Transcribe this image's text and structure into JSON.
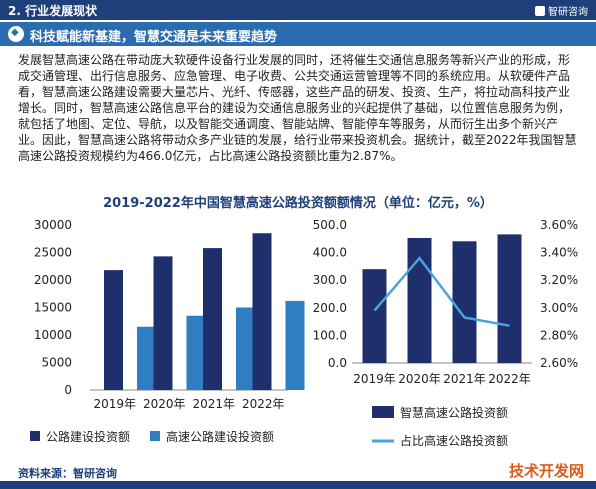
{
  "header": {
    "section_title": "2. 行业发展现状",
    "brand": "智研咨询",
    "banner": "科技赋能新基建，智慧交通是未来重要趋势"
  },
  "paragraph": "发展智慧高速公路在带动庞大软硬件设备行业发展的同时，还将催生交通信息服务等新兴产业的形成，形成交通管理、出行信息服务、应急管理、电子收费、公共交通运营管理等不同的系统应用。从软硬件产品看，智慧高速公路建设需要大量芯片、光纤、传感器，这些产品的研发、投资、生产，将拉动高科技产业增长。同时，智慧高速公路信息平台的建设为交通信息服务业的兴起提供了基础，以位置信息服务为例，就包括了地图、定位、导航，以及智能交通调度、智能站牌、智能停车等服务，从而衍生出多个新兴产业。因此，智慧高速公路将带动众多产业链的发展，给行业带来投资机会。据统计，截至2022年我国智慧高速公路投资规模约为466.0亿元，占比高速公路投资额比重为2.87%。",
  "chart_title": "2019-2022年中国智慧高速公路投资额额情况（单位：亿元，%）",
  "chart_data": [
    {
      "type": "bar",
      "categories": [
        "2019年",
        "2020年",
        "2021年",
        "2022年"
      ],
      "series": [
        {
          "name": "公路建设投资额",
          "values": [
            21800,
            24300,
            25800,
            28500
          ],
          "color": "#1e2f6b"
        },
        {
          "name": "高速公路建设投资额",
          "values": [
            11500,
            13500,
            15000,
            16200
          ],
          "color": "#2f7ec2"
        }
      ],
      "yticks": [
        "30000",
        "25000",
        "20000",
        "15000",
        "10000",
        "5000",
        "0"
      ],
      "ylim": [
        0,
        30000
      ],
      "legend_position": "bottom"
    },
    {
      "type": "bar+line",
      "categories": [
        "2019年",
        "2020年",
        "2021年",
        "2022年"
      ],
      "series": [
        {
          "name": "智慧高速公路投资额",
          "type": "bar",
          "axis": "left",
          "values": [
            340,
            453,
            441,
            466
          ],
          "color": "#1e2f6b"
        },
        {
          "name": "占比高速公路投资额",
          "type": "line",
          "axis": "right",
          "values": [
            2.98,
            3.36,
            2.93,
            2.87
          ],
          "color": "#4aa3df"
        }
      ],
      "yticks_left": [
        "500.0",
        "400.0",
        "300.0",
        "200.0",
        "100.0",
        "0.0"
      ],
      "ylim_left": [
        0,
        500
      ],
      "yticks_right": [
        "3.60%",
        "3.40%",
        "3.20%",
        "3.00%",
        "2.80%",
        "2.60%"
      ],
      "ylim_right": [
        2.6,
        3.6
      ],
      "legend_position": "bottom"
    }
  ],
  "source": "资料来源：智研咨询",
  "watermark": "技术开发网"
}
